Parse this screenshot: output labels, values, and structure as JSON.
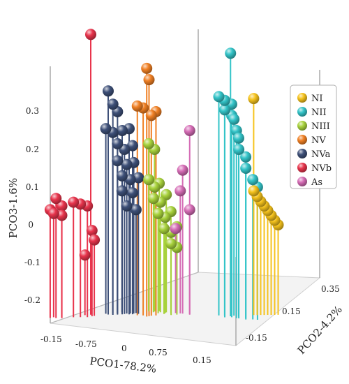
{
  "chart_data": {
    "type": "scatter3d",
    "axes": {
      "x": {
        "label": "PCO1-78.2%",
        "ticks": [
          "-0.15",
          "-0.75",
          "0",
          "0.75",
          "0.15"
        ]
      },
      "y": {
        "label": "PCO2-4.2%",
        "ticks": [
          "-0.15",
          "0.15",
          "0.35"
        ]
      },
      "z": {
        "label": "PCO3-1.6%",
        "ticks": [
          "-0.2",
          "-0.1",
          "0",
          "0.1",
          "0.2",
          "0.3"
        ],
        "range": [
          -0.2,
          0.3
        ]
      }
    },
    "legend_position": "right",
    "series": [
      {
        "name": "NI",
        "color": "#f6c31c",
        "points": [
          {
            "x": 0.62,
            "y": 0.33,
            "z": 0.335
          },
          {
            "x": 0.6,
            "y": 0.35,
            "z": 0.09
          },
          {
            "x": 0.62,
            "y": 0.36,
            "z": 0.075
          },
          {
            "x": 0.64,
            "y": 0.37,
            "z": 0.062
          },
          {
            "x": 0.66,
            "y": 0.38,
            "z": 0.05
          },
          {
            "x": 0.68,
            "y": 0.39,
            "z": 0.038
          },
          {
            "x": 0.7,
            "y": 0.4,
            "z": 0.025
          },
          {
            "x": 0.72,
            "y": 0.41,
            "z": 0.012
          },
          {
            "x": 0.74,
            "y": 0.42,
            "z": 0.0
          }
        ]
      },
      {
        "name": "NII",
        "color": "#33c4c8",
        "points": [
          {
            "x": 0.45,
            "y": 0.3,
            "z": 0.455
          },
          {
            "x": 0.4,
            "y": 0.25,
            "z": 0.34
          },
          {
            "x": 0.43,
            "y": 0.27,
            "z": 0.33
          },
          {
            "x": 0.46,
            "y": 0.3,
            "z": 0.32
          },
          {
            "x": 0.4,
            "y": 0.3,
            "z": 0.305
          },
          {
            "x": 0.44,
            "y": 0.32,
            "z": 0.29
          },
          {
            "x": 0.48,
            "y": 0.3,
            "z": 0.28
          },
          {
            "x": 0.45,
            "y": 0.35,
            "z": 0.25
          },
          {
            "x": 0.49,
            "y": 0.33,
            "z": 0.23
          },
          {
            "x": 0.46,
            "y": 0.36,
            "z": 0.2
          },
          {
            "x": 0.5,
            "y": 0.38,
            "z": 0.18
          },
          {
            "x": 0.48,
            "y": 0.4,
            "z": 0.15
          },
          {
            "x": 0.52,
            "y": 0.42,
            "z": 0.12
          },
          {
            "x": 0.54,
            "y": 0.44,
            "z": 0.1
          }
        ]
      },
      {
        "name": "NIII",
        "color": "#a8d23c",
        "points": [
          {
            "x": 0.1,
            "y": -0.05,
            "z": 0.215
          },
          {
            "x": 0.12,
            "y": -0.02,
            "z": 0.2
          },
          {
            "x": 0.08,
            "y": -0.03,
            "z": 0.12
          },
          {
            "x": 0.11,
            "y": -0.01,
            "z": 0.1
          },
          {
            "x": 0.14,
            "y": 0.0,
            "z": 0.11
          },
          {
            "x": 0.09,
            "y": 0.0,
            "z": 0.07
          },
          {
            "x": 0.13,
            "y": 0.02,
            "z": 0.06
          },
          {
            "x": 0.16,
            "y": 0.04,
            "z": 0.08
          },
          {
            "x": 0.1,
            "y": 0.03,
            "z": 0.03
          },
          {
            "x": 0.14,
            "y": 0.05,
            "z": 0.02
          },
          {
            "x": 0.18,
            "y": 0.06,
            "z": 0.035
          },
          {
            "x": 0.12,
            "y": 0.06,
            "z": -0.01
          },
          {
            "x": 0.16,
            "y": 0.08,
            "z": -0.02
          },
          {
            "x": 0.2,
            "y": 0.09,
            "z": -0.005
          },
          {
            "x": 0.14,
            "y": 0.1,
            "z": -0.05
          },
          {
            "x": 0.18,
            "y": 0.11,
            "z": -0.06
          }
        ]
      },
      {
        "name": "NV",
        "color": "#f08024",
        "points": [
          {
            "x": -0.02,
            "y": 0.05,
            "z": 0.415
          },
          {
            "x": 0.0,
            "y": 0.05,
            "z": 0.385
          },
          {
            "x": -0.05,
            "y": 0.0,
            "z": 0.315
          },
          {
            "x": -0.02,
            "y": 0.02,
            "z": 0.31
          },
          {
            "x": 0.02,
            "y": 0.05,
            "z": 0.29
          },
          {
            "x": 0.05,
            "y": 0.06,
            "z": 0.3
          }
        ]
      },
      {
        "name": "NVa",
        "color": "#3e5078",
        "points": [
          {
            "x": -0.2,
            "y": -0.1,
            "z": 0.355
          },
          {
            "x": -0.18,
            "y": -0.08,
            "z": 0.32
          },
          {
            "x": -0.15,
            "y": -0.07,
            "z": 0.3
          },
          {
            "x": -0.2,
            "y": -0.12,
            "z": 0.255
          },
          {
            "x": -0.16,
            "y": -0.1,
            "z": 0.245
          },
          {
            "x": -0.12,
            "y": -0.06,
            "z": 0.25
          },
          {
            "x": -0.08,
            "y": -0.04,
            "z": 0.255
          },
          {
            "x": -0.14,
            "y": -0.08,
            "z": 0.215
          },
          {
            "x": -0.1,
            "y": -0.06,
            "z": 0.2
          },
          {
            "x": -0.06,
            "y": -0.03,
            "z": 0.21
          },
          {
            "x": -0.12,
            "y": -0.1,
            "z": 0.17
          },
          {
            "x": -0.08,
            "y": -0.06,
            "z": 0.16
          },
          {
            "x": -0.04,
            "y": -0.04,
            "z": 0.165
          },
          {
            "x": -0.1,
            "y": -0.08,
            "z": 0.13
          },
          {
            "x": -0.06,
            "y": -0.05,
            "z": 0.12
          },
          {
            "x": -0.02,
            "y": -0.02,
            "z": 0.125
          },
          {
            "x": -0.08,
            "y": -0.1,
            "z": 0.09
          },
          {
            "x": -0.04,
            "y": -0.05,
            "z": 0.085
          },
          {
            "x": -0.07,
            "y": -0.07,
            "z": 0.05
          },
          {
            "x": -0.02,
            "y": -0.04,
            "z": 0.04
          }
        ]
      },
      {
        "name": "NVb",
        "color": "#e8344c",
        "points": [
          {
            "x": -0.3,
            "y": -0.15,
            "z": 0.505
          },
          {
            "x": -0.55,
            "y": -0.2,
            "z": 0.07
          },
          {
            "x": -0.52,
            "y": -0.18,
            "z": 0.05
          },
          {
            "x": -0.58,
            "y": -0.22,
            "z": 0.04
          },
          {
            "x": -0.55,
            "y": -0.22,
            "z": 0.03
          },
          {
            "x": -0.5,
            "y": -0.2,
            "z": 0.025
          },
          {
            "x": -0.44,
            "y": -0.16,
            "z": 0.06
          },
          {
            "x": -0.4,
            "y": -0.14,
            "z": 0.055
          },
          {
            "x": -0.36,
            "y": -0.12,
            "z": 0.05
          },
          {
            "x": -0.32,
            "y": -0.12,
            "z": -0.015
          },
          {
            "x": -0.3,
            "y": -0.12,
            "z": -0.04
          },
          {
            "x": -0.34,
            "y": -0.16,
            "z": -0.08
          }
        ]
      },
      {
        "name": "As",
        "color": "#d56cb5",
        "points": [
          {
            "x": 0.25,
            "y": 0.15,
            "z": 0.25
          },
          {
            "x": 0.23,
            "y": 0.11,
            "z": 0.145
          },
          {
            "x": 0.22,
            "y": 0.1,
            "z": 0.09
          },
          {
            "x": 0.26,
            "y": 0.14,
            "z": 0.04
          },
          {
            "x": 0.2,
            "y": 0.08,
            "z": -0.01
          }
        ]
      }
    ]
  }
}
